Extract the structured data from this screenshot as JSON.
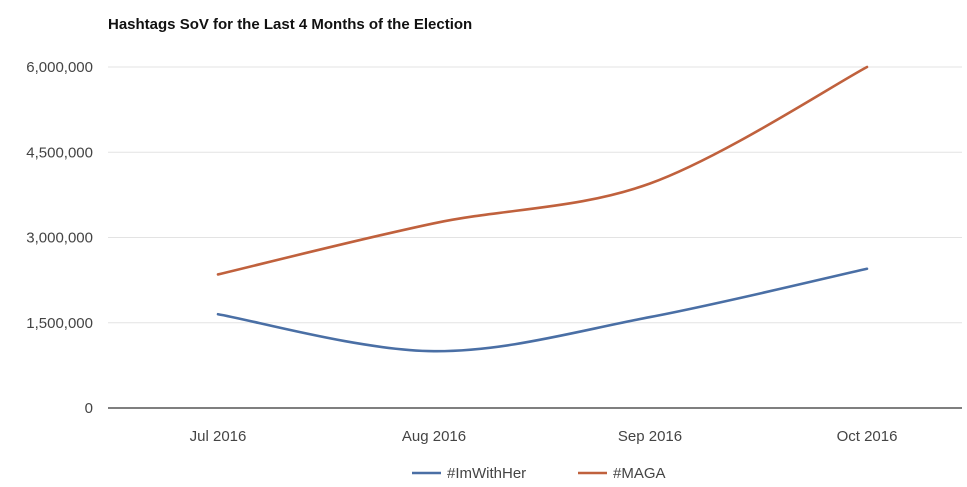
{
  "colors": {
    "imwithher": "#4a6fa5",
    "maga": "#c0613d",
    "grid": "#e3e3e3"
  },
  "chart_data": {
    "type": "line",
    "title": "Hashtags SoV for the Last 4 Months of the Election",
    "xlabel": "",
    "ylabel": "",
    "categories": [
      "Jul 2016",
      "Aug 2016",
      "Sep 2016",
      "Oct 2016"
    ],
    "ylim": [
      0,
      6000000
    ],
    "yticks": [
      0,
      1500000,
      3000000,
      4500000,
      6000000
    ],
    "ytick_labels": [
      "0",
      "1,500,000",
      "3,000,000",
      "4,500,000",
      "6,000,000"
    ],
    "grid": true,
    "legend_position": "bottom",
    "series": [
      {
        "name": "#ImWithHer",
        "color": "#4a6fa5",
        "values": [
          1650000,
          1000000,
          1600000,
          2450000
        ]
      },
      {
        "name": "#MAGA",
        "color": "#c0613d",
        "values": [
          2350000,
          3250000,
          3950000,
          6000000
        ]
      }
    ]
  }
}
